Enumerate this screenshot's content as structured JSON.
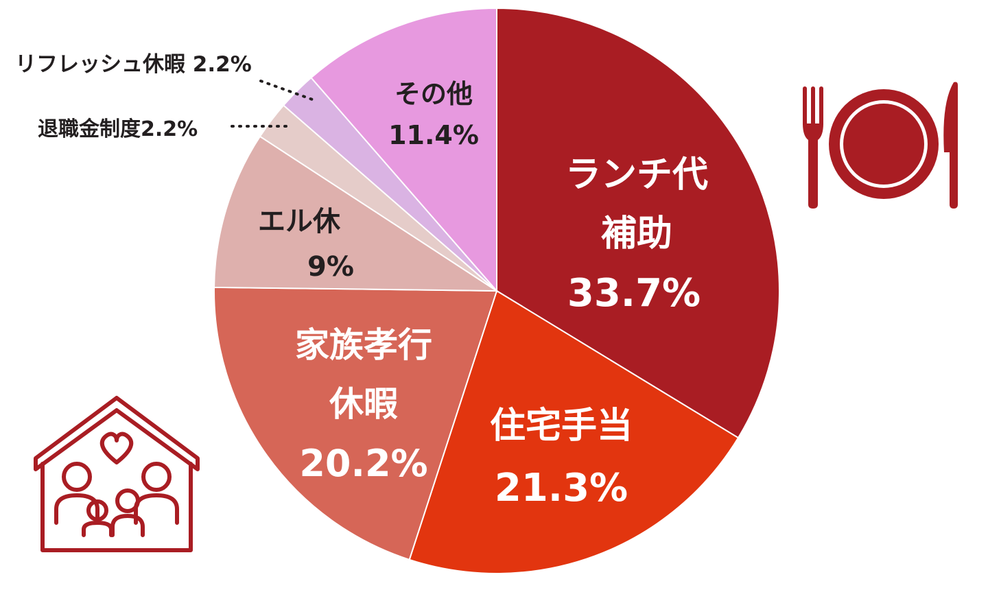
{
  "chart_data": {
    "type": "pie",
    "start_angle": "12 o'clock",
    "direction": "clockwise",
    "slices": [
      {
        "label": "ランチ代補助",
        "label_lines": [
          "ランチ代",
          "補助"
        ],
        "value": 33.7,
        "value_text": "33.7%",
        "color": "#A91D23",
        "text_color": "#ffffff"
      },
      {
        "label": "住宅手当",
        "label_lines": [
          "住宅手当"
        ],
        "value": 21.3,
        "value_text": "21.3%",
        "color": "#E2350F",
        "text_color": "#ffffff"
      },
      {
        "label": "家族孝行休暇",
        "label_lines": [
          "家族孝行",
          "休暇"
        ],
        "value": 20.2,
        "value_text": "20.2%",
        "color": "#D66657",
        "text_color": "#ffffff"
      },
      {
        "label": "エル休",
        "label_lines": [
          "エル休"
        ],
        "value": 9,
        "value_text": "9%",
        "color": "#DEB0AD",
        "text_color": "#231f20"
      },
      {
        "label": "退職金制度",
        "label_lines": [],
        "value": 2.2,
        "value_text": "退職金制度2.2%",
        "color": "#E5CCC9",
        "text_color": "#231f20"
      },
      {
        "label": "リフレッシュ休暇",
        "label_lines": [],
        "value": 2.2,
        "value_text": "リフレッシュ休暇 2.2%",
        "color": "#DAB3E3",
        "text_color": "#231f20"
      },
      {
        "label": "その他",
        "label_lines": [
          "その他"
        ],
        "value": 11.4,
        "value_text": "11.4%",
        "color": "#E799DF",
        "text_color": "#231f20"
      }
    ]
  },
  "icons": {
    "tableware": "fork-plate-knife-icon",
    "family_home": "family-house-icon",
    "icon_color": "#A91D23"
  }
}
